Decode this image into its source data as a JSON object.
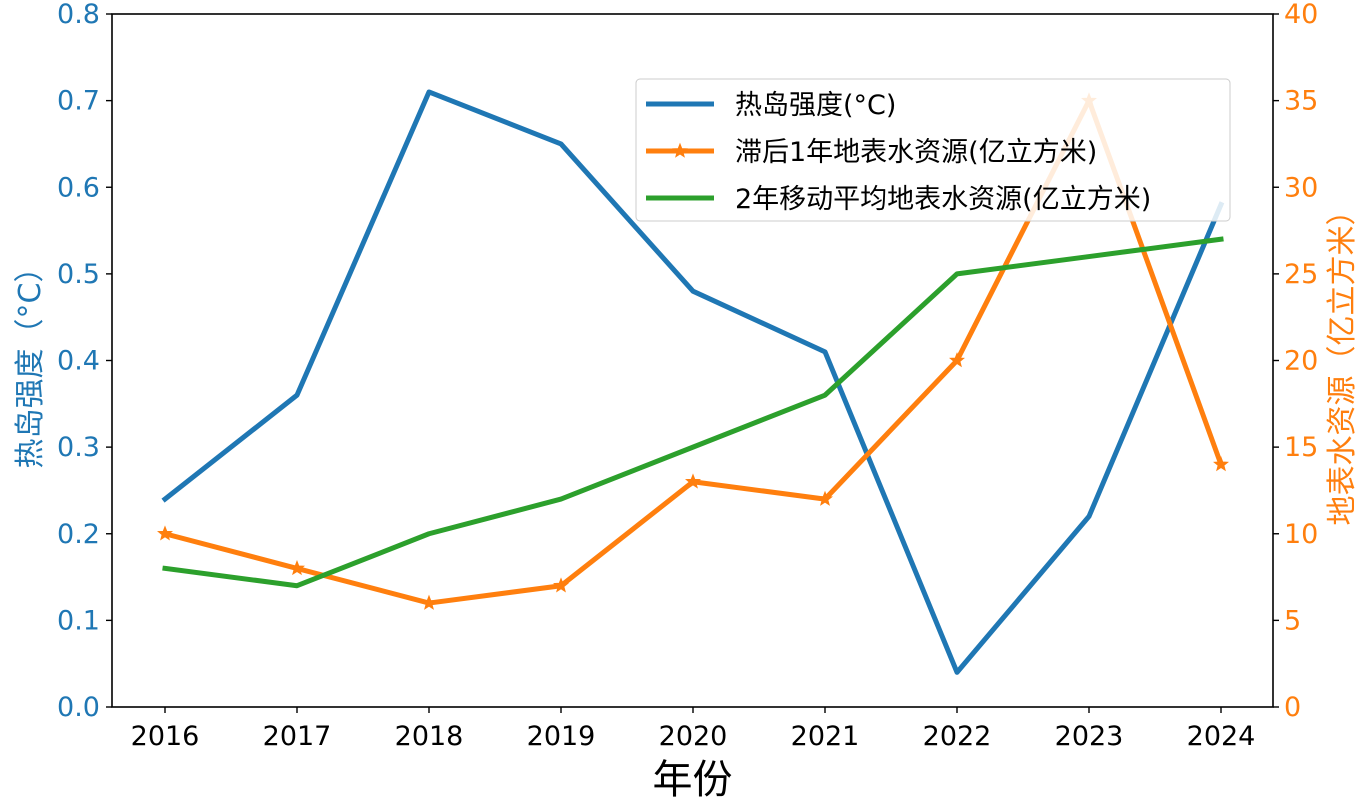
{
  "chart_data": {
    "type": "line",
    "x": [
      "2016",
      "2017",
      "2018",
      "2019",
      "2020",
      "2021",
      "2022",
      "2023",
      "2024"
    ],
    "xlabel": "年份",
    "ylabel_left": "热岛强度（°C）",
    "ylabel_right": "地表水资源（亿立方米）",
    "ylim_left": [
      0,
      0.8
    ],
    "ylim_right": [
      0,
      40
    ],
    "yticks_left": [
      "0.0",
      "0.1",
      "0.2",
      "0.3",
      "0.4",
      "0.5",
      "0.6",
      "0.7",
      "0.8"
    ],
    "yticks_right": [
      "0",
      "5",
      "10",
      "15",
      "20",
      "25",
      "30",
      "35",
      "40"
    ],
    "grid": false,
    "legend_position": "top-right",
    "series": [
      {
        "name": "热岛强度(°C)",
        "axis": "left",
        "color": "#1f77b4",
        "marker": "none",
        "values": [
          0.24,
          0.36,
          0.71,
          0.65,
          0.48,
          0.41,
          0.04,
          0.22,
          0.58
        ]
      },
      {
        "name": "滞后1年地表水资源(亿立方米)",
        "axis": "right",
        "color": "#ff7f0e",
        "marker": "star",
        "values": [
          10,
          8,
          6,
          7,
          13,
          12,
          20,
          35,
          14
        ]
      },
      {
        "name": "2年移动平均地表水资源(亿立方米)",
        "axis": "right",
        "color": "#2ca02c",
        "marker": "none",
        "values": [
          8,
          7,
          10,
          12,
          15,
          18,
          25,
          26,
          27
        ]
      }
    ],
    "colors": {
      "left_axis": "#1f77b4",
      "right_axis": "#ff7f0e",
      "axis_frame": "#000000"
    }
  }
}
